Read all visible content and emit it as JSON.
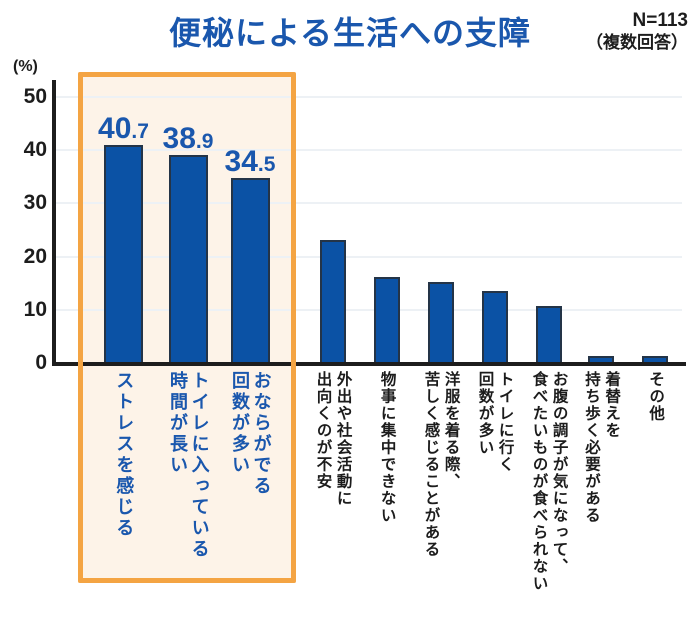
{
  "header": {
    "title": "便秘による生活への支障",
    "n_label": "N=113",
    "note": "（複数回答）"
  },
  "y_axis": {
    "unit": "(%)",
    "ticks": [
      0,
      10,
      20,
      30,
      40,
      50
    ]
  },
  "chart_data": {
    "type": "bar",
    "title": "便秘による生活への支障",
    "sample_size_label": "N=113",
    "sample_note": "（複数回答）",
    "ylabel": "(%)",
    "ylim": [
      0,
      50
    ],
    "grid": true,
    "legend": "none",
    "categories": [
      "ストレスを感じる",
      "トイレに入っている時間が長い",
      "おならがでる回数が多い",
      "外出や社会活動に出向くのが不安",
      "物事に集中できない",
      "洋服を着る際、苦しく感じることがある",
      "トイレに行く回数が多い",
      "お腹の調子が気になって、食べたいものが食べられない",
      "着替えを持ち歩く必要がある",
      "その他"
    ],
    "values": [
      40.7,
      38.9,
      34.5,
      23.0,
      15.9,
      15.0,
      13.3,
      10.6,
      0.9,
      0.9
    ],
    "value_labels_shown": [
      "40.7",
      "38.9",
      "34.5"
    ],
    "highlighted_categories": [
      "ストレスを感じる",
      "トイレに入っている時間が長い",
      "おならがでる回数が多い"
    ],
    "items": [
      {
        "label_lines": [
          "ストレスを感じる"
        ],
        "value": 40.7,
        "value_label": {
          "int": "40",
          "dec": ".7"
        },
        "highlighted": true
      },
      {
        "label_lines": [
          "トイレに入っている",
          "時間が長い"
        ],
        "value": 38.9,
        "value_label": {
          "int": "38",
          "dec": ".9"
        },
        "highlighted": true
      },
      {
        "label_lines": [
          "おならがでる",
          "回数が多い"
        ],
        "value": 34.5,
        "value_label": {
          "int": "34",
          "dec": ".5"
        },
        "highlighted": true
      },
      {
        "label_lines": [
          "外出や社会活動に",
          "出向くのが不安"
        ],
        "value": 23.0,
        "highlighted": false
      },
      {
        "label_lines": [
          "物事に集中できない"
        ],
        "value": 15.9,
        "highlighted": false
      },
      {
        "label_lines": [
          "洋服を着る際、",
          "苦しく感じることがある"
        ],
        "value": 15.0,
        "highlighted": false
      },
      {
        "label_lines": [
          "トイレに行く",
          "回数が多い"
        ],
        "value": 13.3,
        "highlighted": false
      },
      {
        "label_lines": [
          "お腹の調子が気になって、",
          "食べたいものが食べられない"
        ],
        "value": 10.6,
        "highlighted": false
      },
      {
        "label_lines": [
          "着替えを",
          "持ち歩く必要がある"
        ],
        "value": 0.9,
        "highlighted": false
      },
      {
        "label_lines": [
          "その他"
        ],
        "value": 0.9,
        "highlighted": false
      }
    ]
  },
  "colors": {
    "bar_fill": "#0b52a5",
    "bar_border": "#243447",
    "accent_blue": "#1a57ad",
    "highlight_border": "#f4a443",
    "highlight_fill": "#fdf3e8",
    "axis": "#1d1d1d",
    "grid": "#edf1f5"
  }
}
